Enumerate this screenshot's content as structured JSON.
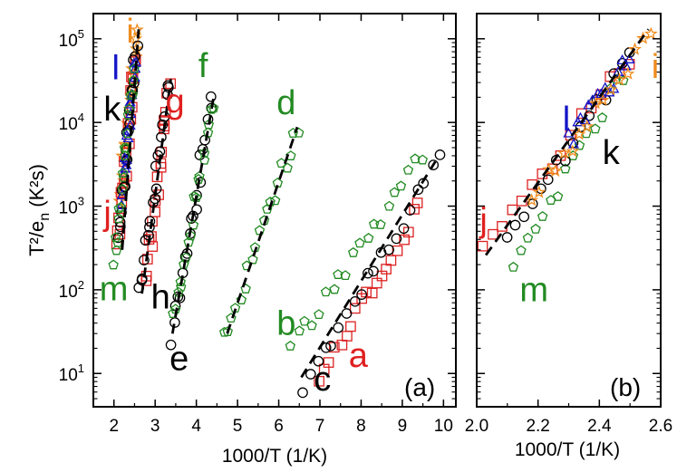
{
  "chart_data": [
    {
      "panel_label": "(a)",
      "type": "scatter",
      "xlabel": "1000/T (1/K)",
      "ylabel": "T²/e",
      "ylabel_sub": "n",
      "ylabel_units": " (K²s)",
      "xlim": [
        1.5,
        10.3
      ],
      "ylim": [
        4,
        200000
      ],
      "yscale": "log",
      "xticks": [
        2,
        3,
        4,
        5,
        6,
        7,
        8,
        9,
        10
      ],
      "yticks": [
        {
          "value": 10,
          "base": "10",
          "exp": "1"
        },
        {
          "value": 100,
          "base": "10",
          "exp": "2"
        },
        {
          "value": 1000,
          "base": "10",
          "exp": "3"
        },
        {
          "value": 10000,
          "base": "10",
          "exp": "4"
        },
        {
          "value": 100000,
          "base": "10",
          "exp": "5"
        }
      ],
      "series": [
        {
          "name": "a",
          "color": "#dd2222",
          "marker": "square",
          "x0": 7.0,
          "y0": 10,
          "x1": 9.4,
          "y1": 950
        },
        {
          "name": "b",
          "color": "#228b22",
          "marker": "pentagon",
          "x0": 6.3,
          "y0": 20,
          "x1": 9.5,
          "y1": 4000
        },
        {
          "name": "c",
          "color": "#000000",
          "marker": "circle",
          "x0": 6.6,
          "y0": 7,
          "x1": 9.9,
          "y1": 3600
        },
        {
          "name": "d",
          "color": "#228b22",
          "marker": "pentagon",
          "x0": 4.7,
          "y0": 28,
          "x1": 6.45,
          "y1": 8500
        },
        {
          "name": "e",
          "color": "#000000",
          "marker": "circle",
          "x0": 3.4,
          "y0": 25,
          "x1": 4.38,
          "y1": 18000
        },
        {
          "name": "f",
          "color": "#228b22",
          "marker": "pentagon",
          "x0": 3.45,
          "y0": 45,
          "x1": 4.42,
          "y1": 17000
        },
        {
          "name": "g",
          "color": "#dd2222",
          "marker": "square",
          "x0": 2.8,
          "y0": 140,
          "x1": 3.35,
          "y1": 26000
        },
        {
          "name": "h",
          "color": "#000000",
          "marker": "circle",
          "x0": 2.62,
          "y0": 88,
          "x1": 3.35,
          "y1": 32000
        },
        {
          "name": "i",
          "color": "#f08c1e",
          "marker": "star",
          "x0": 2.15,
          "y0": 1200,
          "x1": 2.58,
          "y1": 115000
        },
        {
          "name": "j",
          "color": "#dd2222",
          "marker": "square",
          "x0": 2.08,
          "y0": 280,
          "x1": 2.52,
          "y1": 65000
        },
        {
          "name": "k",
          "color": "#000000",
          "marker": "circle",
          "x0": 2.12,
          "y0": 420,
          "x1": 2.55,
          "y1": 75000
        },
        {
          "name": "l",
          "color": "#1515c8",
          "marker": "triangle",
          "x0": 2.2,
          "y0": 1300,
          "x1": 2.52,
          "y1": 60000
        },
        {
          "name": "m",
          "color": "#228b22",
          "marker": "pentagon",
          "x0": 2.0,
          "y0": 190,
          "x1": 2.5,
          "y1": 40000
        }
      ],
      "fit_lines": [
        {
          "x0": 6.55,
          "y0": 9,
          "x1": 9.8,
          "y1": 3400
        },
        {
          "x0": 4.75,
          "y0": 30,
          "x1": 6.45,
          "y1": 8800
        },
        {
          "x0": 3.42,
          "y0": 30,
          "x1": 4.42,
          "y1": 20000
        },
        {
          "x0": 2.68,
          "y0": 90,
          "x1": 3.38,
          "y1": 33000
        },
        {
          "x0": 2.2,
          "y0": 300,
          "x1": 2.6,
          "y1": 130000
        }
      ],
      "annotations": [
        {
          "text": "a",
          "color": "#e02020",
          "x": 7.7,
          "y": 12
        },
        {
          "text": "b",
          "color": "#228b22",
          "x": 5.95,
          "y": 29
        },
        {
          "text": "c",
          "color": "#000000",
          "x": 6.85,
          "y": 6.3
        },
        {
          "text": "d",
          "color": "#228b22",
          "x": 5.95,
          "y": 12500
        },
        {
          "text": "e",
          "color": "#000000",
          "x": 3.35,
          "y": 11
        },
        {
          "text": "f",
          "color": "#228b22",
          "x": 4.05,
          "y": 35000
        },
        {
          "text": "g",
          "color": "#e02020",
          "x": 3.25,
          "y": 13000
        },
        {
          "text": "h",
          "color": "#000000",
          "x": 2.9,
          "y": 60
        },
        {
          "text": "i",
          "color": "#f08c1e",
          "x": 2.3,
          "y": 90000
        },
        {
          "text": "j",
          "color": "#e02020",
          "x": 1.75,
          "y": 600
        },
        {
          "text": "k",
          "color": "#000000",
          "x": 1.75,
          "y": 10500
        },
        {
          "text": "l",
          "color": "#1515c8",
          "x": 1.95,
          "y": 33000
        },
        {
          "text": "m",
          "color": "#228b22",
          "x": 1.65,
          "y": 75
        }
      ]
    },
    {
      "panel_label": "(b)",
      "type": "scatter",
      "xlabel": "1000/T (1/K)",
      "xlim": [
        2.0,
        2.6
      ],
      "ylim": [
        4,
        200000
      ],
      "yscale": "log",
      "xticks": [
        {
          "value": 2.0,
          "label": "2.0"
        },
        {
          "value": 2.2,
          "label": "2.2"
        },
        {
          "value": 2.4,
          "label": "2.4"
        },
        {
          "value": 2.6,
          "label": "2.6"
        }
      ],
      "series": [
        {
          "name": "j",
          "color": "#dd2222",
          "marker": "square",
          "x0": 2.02,
          "y0": 280,
          "x1": 2.5,
          "y1": 60000
        },
        {
          "name": "m",
          "color": "#228b22",
          "marker": "pentagon",
          "x0": 2.12,
          "y0": 190,
          "x1": 2.48,
          "y1": 40000
        },
        {
          "name": "k",
          "color": "#000000",
          "marker": "circle",
          "x0": 2.1,
          "y0": 450,
          "x1": 2.5,
          "y1": 60000
        },
        {
          "name": "l",
          "color": "#1515c8",
          "marker": "triangle",
          "x0": 2.3,
          "y0": 6000,
          "x1": 2.5,
          "y1": 60000
        },
        {
          "name": "i",
          "color": "#f08c1e",
          "marker": "star",
          "x0": 2.18,
          "y0": 1300,
          "x1": 2.57,
          "y1": 115000
        }
      ],
      "fit_lines": [
        {
          "x0": 2.03,
          "y0": 260,
          "x1": 2.56,
          "y1": 130000
        }
      ],
      "annotations": [
        {
          "text": "i",
          "color": "#f08c1e",
          "x": 2.57,
          "y": 34000
        },
        {
          "text": "j",
          "color": "#e02020",
          "x": 2.01,
          "y": 500
        },
        {
          "text": "k",
          "color": "#000000",
          "x": 2.41,
          "y": 3200
        },
        {
          "text": "l",
          "color": "#1515c8",
          "x": 2.28,
          "y": 8000
        },
        {
          "text": "m",
          "color": "#228b22",
          "x": 2.14,
          "y": 73
        }
      ]
    }
  ]
}
